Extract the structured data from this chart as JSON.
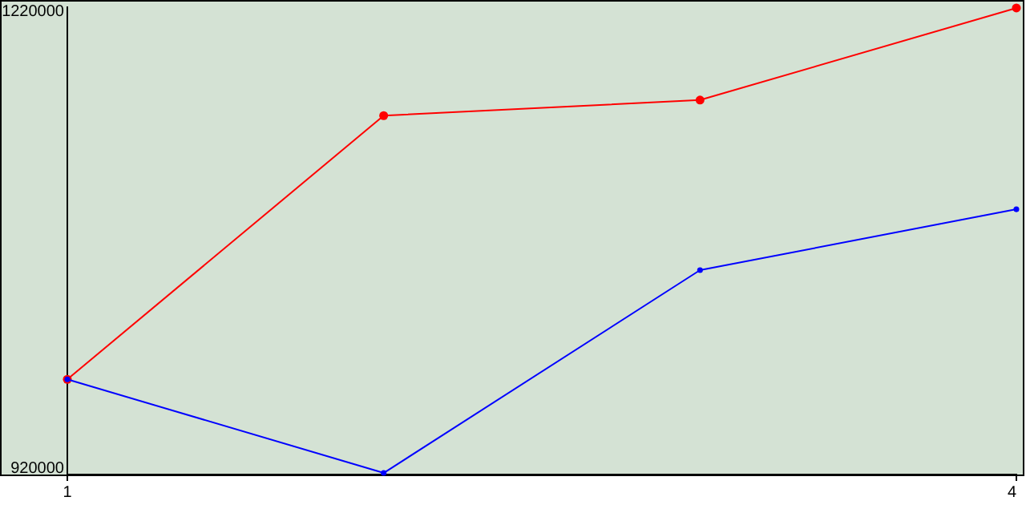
{
  "chart_data": {
    "type": "line",
    "x": [
      1,
      2,
      3,
      4
    ],
    "xlim": [
      1,
      4
    ],
    "xticks": [
      1,
      4
    ],
    "ylim": [
      920000,
      1220000
    ],
    "yticks": [
      920000,
      1220000
    ],
    "marker": "circle",
    "grid": false,
    "series": [
      {
        "color": "#ff0000",
        "values": [
          981000,
          1150000,
          1160000,
          1219000
        ]
      },
      {
        "color": "#0000ff",
        "values": [
          981000,
          921000,
          1051000,
          1090000
        ]
      }
    ]
  }
}
